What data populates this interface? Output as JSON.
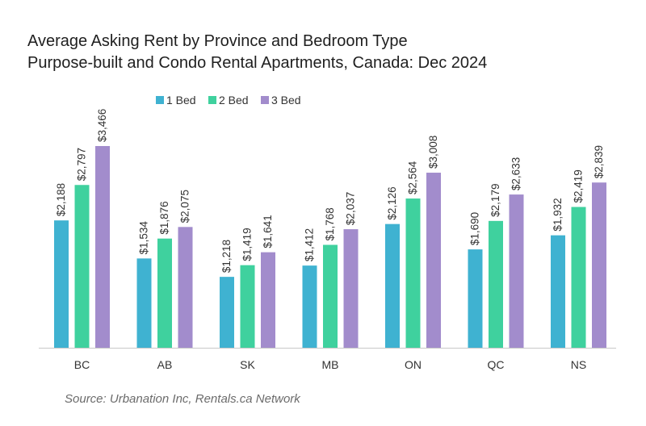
{
  "chart_data": {
    "type": "bar",
    "title": "Average Asking Rent by Province and Bedroom Type",
    "subtitle": "Purpose-built and Condo Rental Apartments, Canada: Dec 2024",
    "xlabel": "",
    "ylabel": "",
    "ylim": [
      0,
      3466
    ],
    "grid": false,
    "legend_position": "top-center",
    "categories": [
      "BC",
      "AB",
      "SK",
      "MB",
      "ON",
      "QC",
      "NS"
    ],
    "series": [
      {
        "name": "1 Bed",
        "color": "#3fb2d1",
        "values": [
          2188,
          1534,
          1218,
          1412,
          2126,
          1690,
          1932
        ]
      },
      {
        "name": "2 Bed",
        "color": "#3fd19e",
        "values": [
          2797,
          1876,
          1419,
          1768,
          2564,
          2179,
          2419
        ]
      },
      {
        "name": "3 Bed",
        "color": "#a28ccc",
        "values": [
          3466,
          2075,
          1641,
          2037,
          3008,
          2633,
          2839
        ]
      }
    ],
    "value_format": "$#,###",
    "source": "Source: Urbanation Inc, Rentals.ca Network"
  }
}
